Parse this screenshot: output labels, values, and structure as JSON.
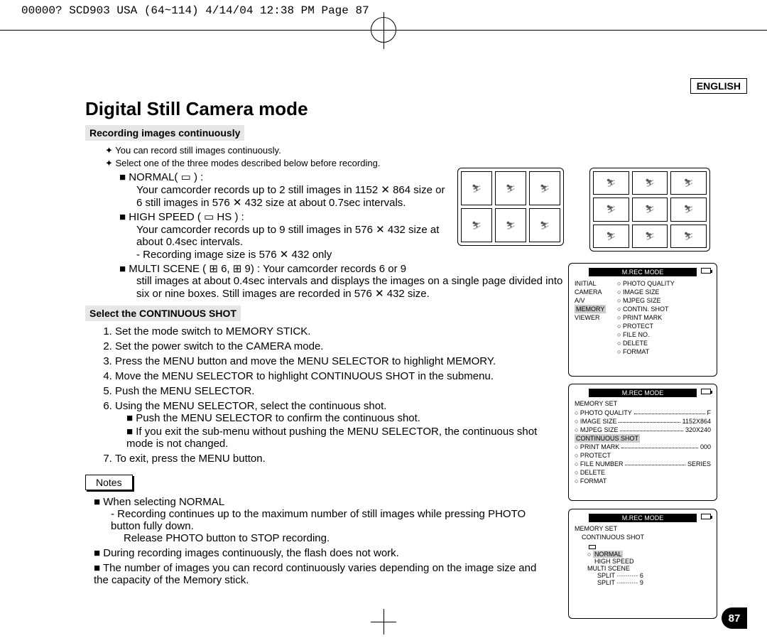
{
  "crop_header": "00000? SCD903 USA (64~114)  4/14/04 12:38 PM  Page 87",
  "language": "ENGLISH",
  "title": "Digital Still Camera mode",
  "section1_heading": "Recording images continuously",
  "intro_bullets": [
    "You can record still images continuously.",
    "Select one of the three modes described below before recording."
  ],
  "modes": {
    "normal": {
      "label": "NORMAL(",
      "label_end": ") :",
      "desc": "Your camcorder records up to 2 still images in 1152 ✕ 864 size or 6 still images in 576 ✕ 432 size at about 0.7sec intervals."
    },
    "highspeed": {
      "label": "HIGH SPEED (",
      "label_end": ") :",
      "desc": "Your camcorder records up to 9 still images in 576 ✕ 432 size at about 0.4sec intervals.",
      "note": "-   Recording image size is 576 ✕ 432 only"
    },
    "multi": {
      "label": "MULTI SCENE (",
      "mid": "6, ",
      "label_end": "9) : Your camcorder records 6 or 9",
      "desc": "still images at about 0.4sec intervals and displays the images on a single page divided into six or nine boxes. Still images are recorded in 576 ✕ 432 size."
    }
  },
  "section2_heading": "Select the CONTINUOUS SHOT",
  "steps": [
    "Set the mode switch to MEMORY STICK.",
    "Set the power switch to the CAMERA mode.",
    "Press the MENU button and move the MENU SELECTOR to highlight MEMORY.",
    "Move the MENU SELECTOR to highlight CONTINUOUS SHOT in the submenu.",
    "Push the MENU SELECTOR.",
    "Using the MENU SELECTOR, select the continuous shot."
  ],
  "step6_sub": [
    "Push the MENU SELECTOR to confirm the continuous shot.",
    "If you exit the sub-menu without pushing the MENU SELECTOR, the continuous shot mode is not changed."
  ],
  "step7": "To exit, press the MENU button.",
  "notes_label": "Notes",
  "notes": {
    "n1": "When selecting NORMAL",
    "n1a": "-   Recording continues up to the maximum number of still images while pressing PHOTO button fully down.",
    "n1b": "Release PHOTO button to STOP recording.",
    "n2": "During recording images continuously, the flash does not work.",
    "n3": "The number of images you can record continuously varies depending on the image size and the capacity of the Memory stick."
  },
  "lcd_header": "M.REC  MODE",
  "lcd1": {
    "left": [
      "INITIAL",
      "CAMERA",
      "A/V",
      "MEMORY",
      "VIEWER"
    ],
    "right": [
      "PHOTO QUALITY",
      "IMAGE SIZE",
      "MJPEG SIZE",
      "CONTIN. SHOT",
      "PRINT MARK",
      "PROTECT",
      "FILE NO.",
      "DELETE",
      "FORMAT"
    ]
  },
  "lcd2": {
    "title": "MEMORY SET",
    "items": [
      {
        "k": "PHOTO QUALITY",
        "v": "F"
      },
      {
        "k": "IMAGE SIZE",
        "v": "1152X864"
      },
      {
        "k": "MJPEG SIZE",
        "v": "320X240"
      },
      {
        "k": "CONTINUOUS SHOT",
        "v": "",
        "hl": true
      },
      {
        "k": "PRINT MARK",
        "v": "000"
      },
      {
        "k": "PROTECT",
        "v": ""
      },
      {
        "k": "FILE NUMBER",
        "v": "SERIES"
      },
      {
        "k": "DELETE",
        "v": ""
      },
      {
        "k": "FORMAT",
        "v": ""
      }
    ]
  },
  "lcd3": {
    "title": "MEMORY SET",
    "sub": "CONTINUOUS SHOT",
    "items": [
      "NORMAL",
      "HIGH SPEED",
      "MULTI SCENE"
    ],
    "split1": "SPLIT  ·········· 6",
    "split2": "SPLIT  ·········· 9"
  },
  "page_number": "87"
}
